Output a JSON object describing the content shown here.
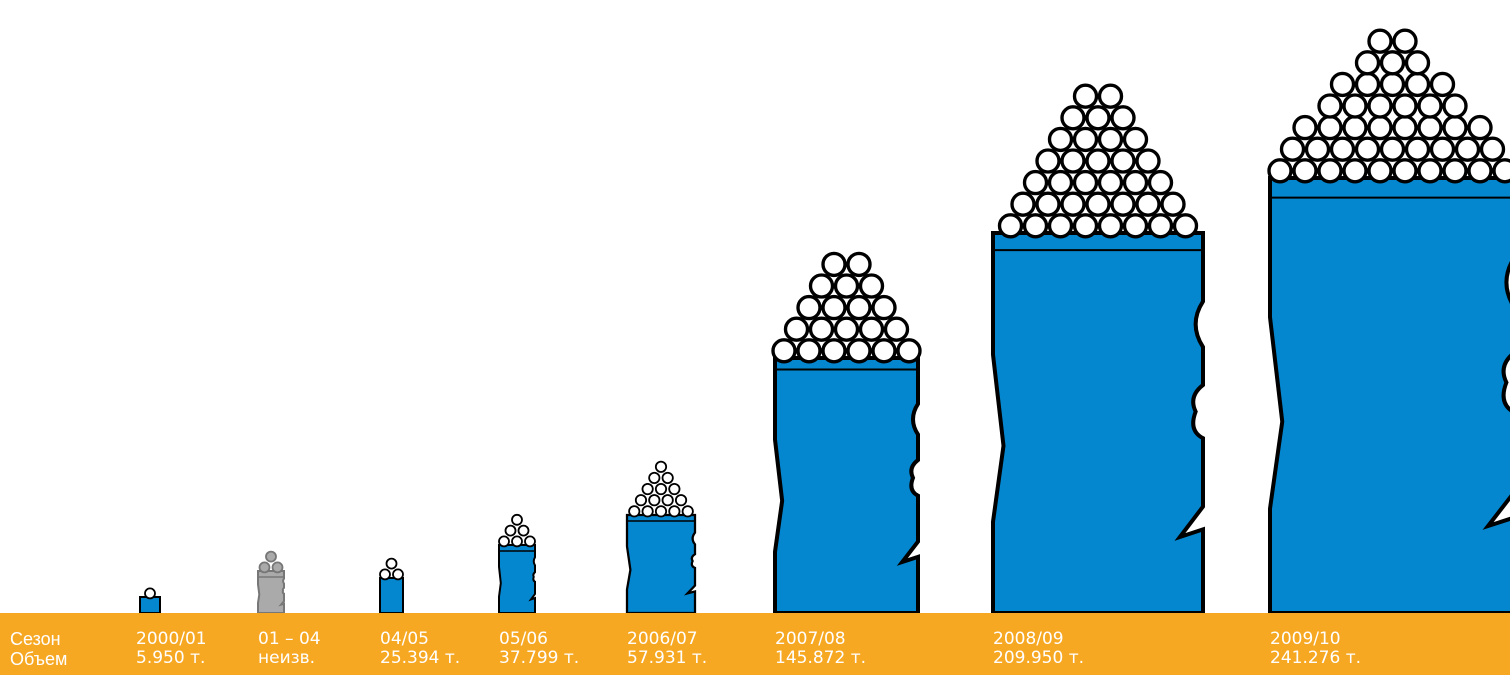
{
  "labels": {
    "season": "Сезон",
    "volume": "Объем"
  },
  "chart_data": {
    "type": "bar",
    "colors": {
      "known": "#0487CF",
      "unknown": "#AAAAAA",
      "band": "#F7A823",
      "outline": "#000000",
      "text": "#FFFFFF"
    },
    "bars": [
      {
        "season": "2000/01",
        "volume_label": "5.950 т.",
        "value": 5950,
        "known": true
      },
      {
        "season": "01 – 04",
        "volume_label": "неизв.",
        "value": 10000,
        "known": false
      },
      {
        "season": "04/05",
        "volume_label": "25.394 т.",
        "value": 25394,
        "known": true
      },
      {
        "season": "05/06",
        "volume_label": "37.799 т.",
        "value": 37799,
        "known": true
      },
      {
        "season": "2006/07",
        "volume_label": "57.931 т.",
        "value": 57931,
        "known": true
      },
      {
        "season": "2007/08",
        "volume_label": "145.872 т.",
        "value": 145872,
        "known": true
      },
      {
        "season": "2008/09",
        "volume_label": "209.950 т.",
        "value": 209950,
        "known": true
      },
      {
        "season": "2009/10",
        "volume_label": "241.276 т.",
        "value": 241276,
        "known": true
      }
    ]
  }
}
